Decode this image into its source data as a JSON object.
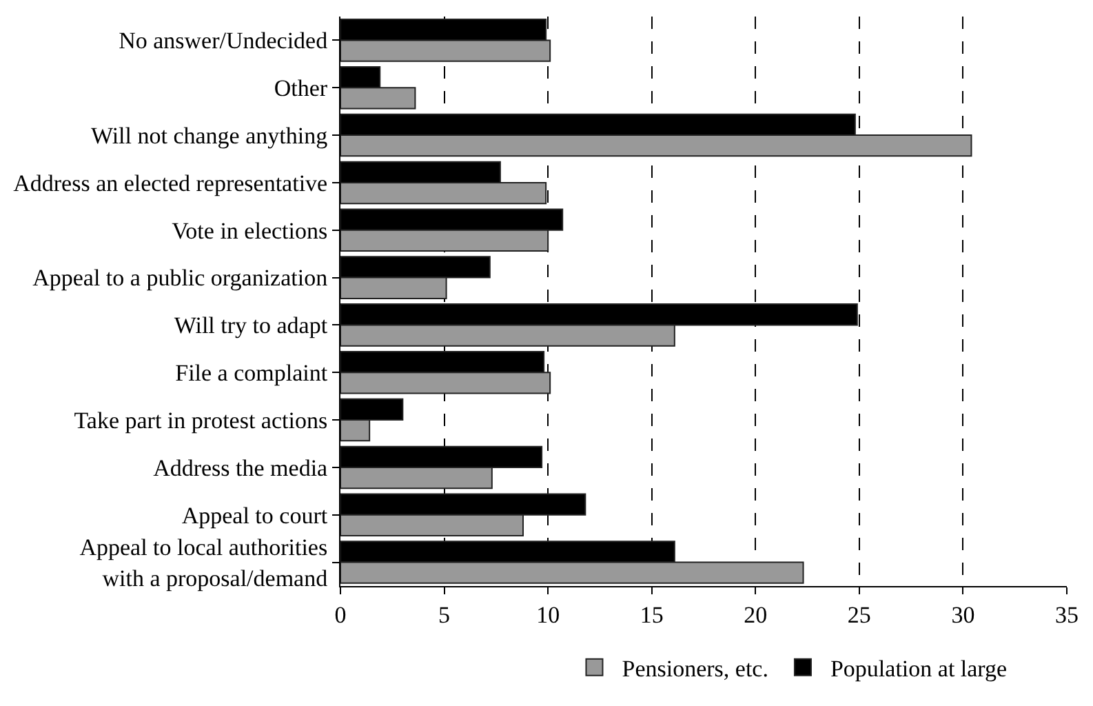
{
  "chart_data": {
    "type": "bar",
    "orientation": "horizontal",
    "categories": [
      "No answer/Undecided",
      "Other",
      "Will not change anything",
      "Address an elected representative",
      "Vote in elections",
      "Appeal to a public organization",
      "Will try to adapt",
      "File a complaint",
      "Take part in protest actions",
      "Address the media",
      "Appeal to court",
      "Appeal to local authorities\nwith a proposal/demand"
    ],
    "series": [
      {
        "name": "Pensioners, etc.",
        "color": "#999999",
        "values": [
          10.1,
          3.6,
          30.4,
          9.9,
          10.0,
          5.1,
          16.1,
          10.1,
          1.4,
          7.3,
          8.8,
          22.3
        ]
      },
      {
        "name": "Population at large",
        "color": "#000000",
        "values": [
          9.9,
          1.9,
          24.8,
          7.7,
          10.7,
          7.2,
          24.9,
          9.8,
          3.0,
          9.7,
          11.8,
          16.1
        ]
      }
    ],
    "xlim": [
      0,
      35
    ],
    "xticks": [
      0,
      5,
      10,
      15,
      20,
      25,
      30,
      35
    ],
    "grid": "x",
    "line_style": "dashed",
    "legend": "bottom"
  }
}
